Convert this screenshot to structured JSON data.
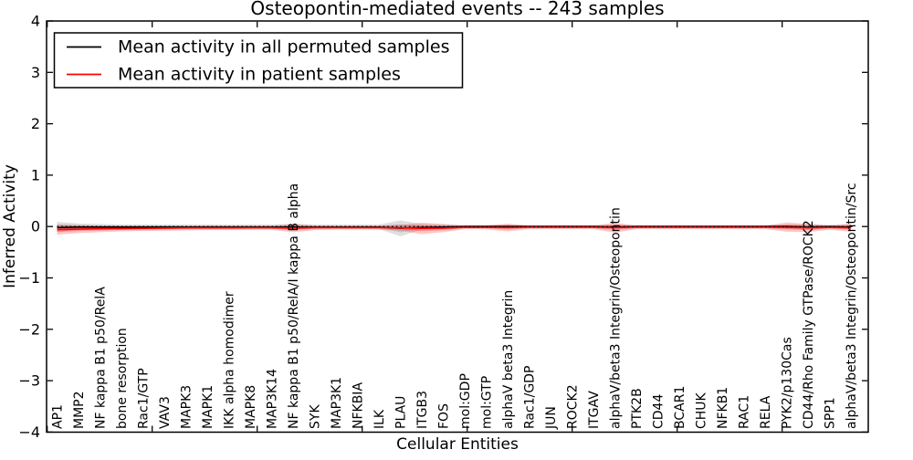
{
  "title": "Osteopontin-mediated events -- 243 samples",
  "axes": {
    "ylabel": "Inferred Activity",
    "xlabel": "Cellular Entities",
    "yticks": [
      4,
      3,
      2,
      1,
      0,
      -1,
      -2,
      -3,
      -4
    ],
    "ytick_labels": [
      "4",
      "3",
      "2",
      "1",
      "0",
      "−1",
      "−2",
      "−3",
      "−4"
    ],
    "ylim": [
      -4,
      4
    ]
  },
  "legend": {
    "items": [
      {
        "label": "Mean activity in all permuted samples",
        "color": "#000000"
      },
      {
        "label": "Mean activity in patient samples",
        "color": "#ff0000"
      }
    ],
    "position": "upper left"
  },
  "chart_data": {
    "type": "line",
    "title": "Osteopontin-mediated events -- 243 samples",
    "xlabel": "Cellular Entities",
    "ylabel": "Inferred Activity",
    "ylim": [
      -4,
      4
    ],
    "yticks": [
      4,
      3,
      2,
      1,
      0,
      -1,
      -2,
      -3,
      -4
    ],
    "grid": false,
    "legend_position": "upper left",
    "zero_reference_line": {
      "y": 0,
      "style": "dotted",
      "color": "#000000"
    },
    "categories": [
      "AP1",
      "MMP2",
      "NF kappa B1 p50/RelA",
      "bone resorption",
      "Rac1/GTP",
      "VAV3",
      "MAPK3",
      "MAPK1",
      "IKK alpha homodimer",
      "MAPK8",
      "MAP3K14",
      "NF kappa B1 p50/RelA/I kappa B alpha",
      "SYK",
      "MAP3K1",
      "NFKBIA",
      "ILK",
      "PLAU",
      "ITGB3",
      "FOS",
      "mol:GDP",
      "mol:GTP",
      "alphaV beta3 Integrin",
      "Rac1/GDP",
      "JUN",
      "ROCK2",
      "ITGAV",
      "alphaV/beta3 Integrin/Osteopontin",
      "PTK2B",
      "CD44",
      "BCAR1",
      "CHUK",
      "NFKB1",
      "RAC1",
      "RELA",
      "PYK2/p130Cas",
      "CD44/Rho Family GTPase/ROCK2",
      "SPP1",
      "alphaV/beta3 Integrin/Osteopontin/Src"
    ],
    "series": [
      {
        "name": "Mean activity in all permuted samples",
        "line_color": "#000000",
        "band_color": "rgba(0,0,0,0.13)",
        "mean": [
          -0.02,
          -0.01,
          -0.01,
          -0.01,
          -0.01,
          -0.01,
          -0.01,
          -0.01,
          -0.01,
          -0.01,
          -0.01,
          -0.01,
          -0.01,
          -0.01,
          -0.01,
          -0.01,
          -0.03,
          -0.02,
          -0.01,
          0,
          0,
          0,
          0,
          0,
          0,
          0,
          -0.01,
          0,
          0,
          0,
          0,
          0,
          0,
          0,
          0,
          -0.01,
          0,
          -0.01
        ],
        "band_upper": [
          0.09,
          0.06,
          0.05,
          0.04,
          0.04,
          0.04,
          0.04,
          0.04,
          0.04,
          0.04,
          0.04,
          0.05,
          0.04,
          0.04,
          0.04,
          0.04,
          0.12,
          0.05,
          0.04,
          0.03,
          0.03,
          0.04,
          0.03,
          0.03,
          0.03,
          0.03,
          0.04,
          0.03,
          0.03,
          0.03,
          0.03,
          0.03,
          0.03,
          0.03,
          0.04,
          0.05,
          0.03,
          0.04
        ],
        "band_lower": [
          -0.1,
          -0.07,
          -0.055,
          -0.05,
          -0.045,
          -0.045,
          -0.045,
          -0.045,
          -0.045,
          -0.045,
          -0.045,
          -0.055,
          -0.045,
          -0.045,
          -0.045,
          -0.05,
          -0.19,
          -0.06,
          -0.05,
          -0.035,
          -0.035,
          -0.04,
          -0.035,
          -0.035,
          -0.035,
          -0.035,
          -0.05,
          -0.035,
          -0.035,
          -0.035,
          -0.035,
          -0.035,
          -0.035,
          -0.035,
          -0.045,
          -0.06,
          -0.04,
          -0.045
        ]
      },
      {
        "name": "Mean activity in patient samples",
        "line_color": "#ff0000",
        "band_color": "rgba(255,0,0,0.22)",
        "mean": [
          -0.06,
          -0.05,
          -0.045,
          -0.04,
          -0.035,
          -0.03,
          -0.025,
          -0.025,
          -0.025,
          -0.022,
          -0.022,
          -0.03,
          -0.02,
          -0.02,
          -0.02,
          -0.02,
          -0.025,
          -0.035,
          -0.03,
          -0.015,
          -0.015,
          -0.02,
          -0.012,
          -0.012,
          -0.012,
          -0.012,
          -0.02,
          -0.012,
          -0.012,
          -0.012,
          -0.012,
          -0.012,
          -0.012,
          -0.012,
          -0.015,
          -0.025,
          -0.015,
          -0.025
        ],
        "band_upper": [
          0.04,
          0.025,
          0.02,
          0.015,
          0.015,
          0.015,
          0.015,
          0.015,
          0.015,
          0.015,
          0.015,
          0.055,
          0.02,
          0.015,
          0.015,
          0.015,
          0.03,
          0.075,
          0.05,
          0.015,
          0.02,
          0.055,
          0.015,
          0.015,
          0.015,
          0.015,
          0.075,
          0.015,
          0.015,
          0.015,
          0.015,
          0.015,
          0.015,
          0.015,
          0.08,
          0.05,
          0.02,
          0.06
        ],
        "band_lower": [
          -0.16,
          -0.125,
          -0.11,
          -0.095,
          -0.085,
          -0.08,
          -0.075,
          -0.07,
          -0.07,
          -0.065,
          -0.065,
          -0.11,
          -0.07,
          -0.06,
          -0.06,
          -0.06,
          -0.075,
          -0.15,
          -0.11,
          -0.05,
          -0.055,
          -0.095,
          -0.05,
          -0.05,
          -0.05,
          -0.05,
          -0.12,
          -0.05,
          -0.05,
          -0.05,
          -0.05,
          -0.05,
          -0.05,
          -0.05,
          -0.1,
          -0.11,
          -0.06,
          -0.1
        ]
      }
    ]
  }
}
